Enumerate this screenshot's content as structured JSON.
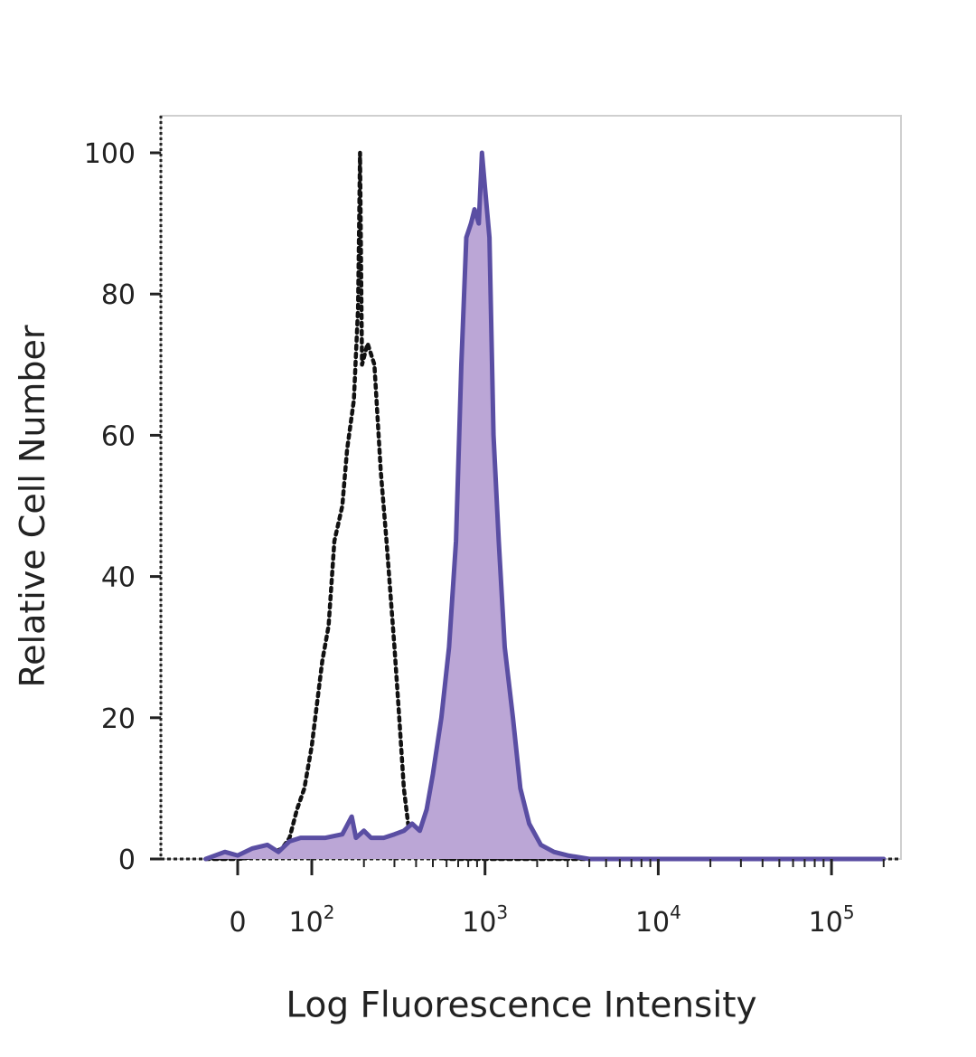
{
  "chart_data": {
    "type": "line",
    "title": "",
    "xlabel": "Log Fluorescence Intensity",
    "ylabel": "Relative Cell Number",
    "x_scale": "biexponential",
    "x_ticks": [
      {
        "value": 0,
        "label": "0",
        "base": "0",
        "exp": ""
      },
      {
        "value": 100,
        "label": "10^2",
        "base": "10",
        "exp": "2"
      },
      {
        "value": 1000,
        "label": "10^3",
        "base": "10",
        "exp": "3"
      },
      {
        "value": 10000,
        "label": "10^4",
        "base": "10",
        "exp": "4"
      },
      {
        "value": 100000,
        "label": "10^5",
        "base": "10",
        "exp": "5"
      }
    ],
    "y_ticks": [
      0,
      20,
      40,
      60,
      80,
      100
    ],
    "ylim": [
      0,
      105
    ],
    "grid": false,
    "legend": "none",
    "series": [
      {
        "style": "dotted",
        "color": "#111111",
        "filled": false,
        "points": [
          [
            -50,
            0
          ],
          [
            0,
            0
          ],
          [
            40,
            0.5
          ],
          [
            60,
            1.5
          ],
          [
            70,
            3
          ],
          [
            80,
            7
          ],
          [
            90,
            10
          ],
          [
            100,
            16
          ],
          [
            115,
            28
          ],
          [
            125,
            33
          ],
          [
            135,
            45
          ],
          [
            150,
            50
          ],
          [
            160,
            58
          ],
          [
            175,
            65
          ],
          [
            185,
            78
          ],
          [
            190,
            100
          ],
          [
            195,
            70
          ],
          [
            210,
            73
          ],
          [
            230,
            70
          ],
          [
            250,
            55
          ],
          [
            270,
            45
          ],
          [
            300,
            30
          ],
          [
            320,
            20
          ],
          [
            340,
            10
          ],
          [
            360,
            5
          ],
          [
            380,
            2
          ],
          [
            420,
            1
          ],
          [
            500,
            0.5
          ],
          [
            600,
            0
          ],
          [
            200000,
            0
          ]
        ]
      },
      {
        "style": "solid",
        "color": "#5a4ea3",
        "fill": "#bba6d6",
        "filled": true,
        "points": [
          [
            -50,
            0
          ],
          [
            -20,
            1
          ],
          [
            0,
            0.5
          ],
          [
            20,
            1.5
          ],
          [
            40,
            2
          ],
          [
            55,
            1
          ],
          [
            70,
            2.5
          ],
          [
            85,
            3
          ],
          [
            100,
            3
          ],
          [
            120,
            3
          ],
          [
            150,
            3.5
          ],
          [
            170,
            6
          ],
          [
            180,
            3
          ],
          [
            200,
            4
          ],
          [
            220,
            3
          ],
          [
            260,
            3
          ],
          [
            300,
            3.5
          ],
          [
            340,
            4
          ],
          [
            380,
            5
          ],
          [
            420,
            4
          ],
          [
            460,
            7
          ],
          [
            500,
            12
          ],
          [
            560,
            20
          ],
          [
            620,
            30
          ],
          [
            680,
            45
          ],
          [
            730,
            70
          ],
          [
            780,
            88
          ],
          [
            830,
            90
          ],
          [
            870,
            92
          ],
          [
            920,
            90
          ],
          [
            960,
            100
          ],
          [
            1000,
            95
          ],
          [
            1060,
            88
          ],
          [
            1120,
            60
          ],
          [
            1200,
            45
          ],
          [
            1300,
            30
          ],
          [
            1450,
            20
          ],
          [
            1600,
            10
          ],
          [
            1800,
            5
          ],
          [
            2100,
            2
          ],
          [
            2500,
            1
          ],
          [
            3000,
            0.5
          ],
          [
            4000,
            0
          ],
          [
            200000,
            0
          ]
        ]
      }
    ]
  }
}
